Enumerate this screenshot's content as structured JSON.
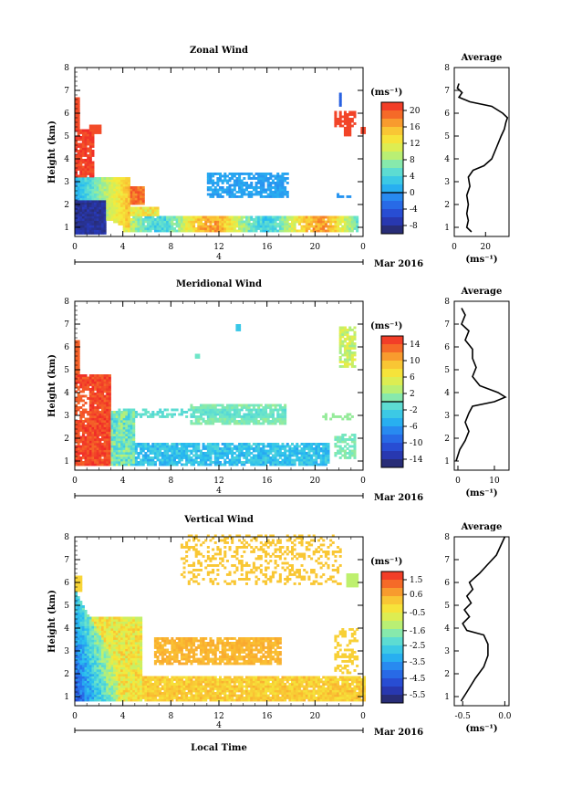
{
  "chart_data": [
    {
      "type": "heatmap",
      "title": "Zonal Wind",
      "ylabel": "Height (km)",
      "xlabel": "",
      "x_ticks": [
        "0",
        "4",
        "8",
        "12",
        "16",
        "20",
        "0"
      ],
      "y_ticks": [
        "1",
        "2",
        "3",
        "4",
        "5",
        "6",
        "7",
        "8"
      ],
      "xlim": [
        0,
        24
      ],
      "ylim": [
        0.6,
        8
      ],
      "date_day": "4",
      "date_label": "Mar 2016",
      "colorbar_unit": "(ms⁻¹)",
      "colorbar_ticks": [
        "20",
        "16",
        "12",
        "8",
        "4",
        "0",
        "-4",
        "-8"
      ],
      "colorbar_range": [
        -10,
        22
      ],
      "zero_line": 0,
      "profile": {
        "title": "Average",
        "xlabel": "(ms⁻¹)",
        "x_ticks": [
          "0",
          "20"
        ],
        "xlim": [
          0,
          35
        ],
        "points": [
          [
            11,
            0.8
          ],
          [
            8,
            1.0
          ],
          [
            9,
            1.3
          ],
          [
            8,
            1.6
          ],
          [
            9,
            2.0
          ],
          [
            8,
            2.4
          ],
          [
            10,
            2.8
          ],
          [
            9,
            3.2
          ],
          [
            12,
            3.5
          ],
          [
            19,
            3.7
          ],
          [
            24,
            4.0
          ],
          [
            27,
            4.5
          ],
          [
            30,
            5.0
          ],
          [
            32,
            5.3
          ],
          [
            33,
            5.6
          ],
          [
            34,
            5.8
          ],
          [
            31,
            6.0
          ],
          [
            24,
            6.3
          ],
          [
            10,
            6.5
          ],
          [
            3,
            6.7
          ],
          [
            5,
            6.9
          ],
          [
            2,
            7.1
          ],
          [
            3,
            7.3
          ]
        ]
      }
    },
    {
      "type": "heatmap",
      "title": "Meridional Wind",
      "ylabel": "Height (km)",
      "xlabel": "",
      "x_ticks": [
        "0",
        "4",
        "8",
        "12",
        "16",
        "20",
        "0"
      ],
      "y_ticks": [
        "1",
        "2",
        "3",
        "4",
        "5",
        "6",
        "7",
        "8"
      ],
      "xlim": [
        0,
        24
      ],
      "ylim": [
        0.6,
        8
      ],
      "date_day": "4",
      "date_label": "Mar 2016",
      "colorbar_unit": "(ms⁻¹)",
      "colorbar_ticks": [
        "14",
        "10",
        "6",
        "2",
        "-2",
        "-6",
        "-10",
        "-14"
      ],
      "colorbar_range": [
        -16,
        16
      ],
      "zero_line": 0,
      "profile": {
        "title": "Average",
        "xlabel": "(ms⁻¹)",
        "x_ticks": [
          "0",
          "10"
        ],
        "xlim": [
          -1,
          14
        ],
        "points": [
          [
            -0.5,
            1.0
          ],
          [
            0.5,
            1.5
          ],
          [
            2,
            1.9
          ],
          [
            3,
            2.3
          ],
          [
            2,
            2.7
          ],
          [
            3,
            3.1
          ],
          [
            4,
            3.4
          ],
          [
            10,
            3.6
          ],
          [
            13,
            3.8
          ],
          [
            11,
            4.0
          ],
          [
            6,
            4.3
          ],
          [
            4,
            4.7
          ],
          [
            5,
            5.1
          ],
          [
            4,
            5.5
          ],
          [
            4,
            5.9
          ],
          [
            2,
            6.3
          ],
          [
            3,
            6.7
          ],
          [
            1,
            7.0
          ],
          [
            2,
            7.4
          ],
          [
            1,
            7.7
          ]
        ]
      }
    },
    {
      "type": "heatmap",
      "title": "Vertical Wind",
      "ylabel": "Height (km)",
      "xlabel": "Local Time",
      "x_ticks": [
        "0",
        "4",
        "8",
        "12",
        "16",
        "20",
        "0"
      ],
      "y_ticks": [
        "1",
        "2",
        "3",
        "4",
        "5",
        "6",
        "7",
        "8"
      ],
      "xlim": [
        0,
        24
      ],
      "ylim": [
        0.6,
        8
      ],
      "date_day": "4",
      "date_label": "Mar 2016",
      "colorbar_unit": "(ms⁻¹)",
      "colorbar_ticks": [
        "1.5",
        "0.6",
        "-0.5",
        "-1.6",
        "-2.5",
        "-3.5",
        "-4.5",
        "-5.5"
      ],
      "colorbar_range": [
        -6,
        2
      ],
      "zero_line": null,
      "profile": {
        "title": "Average",
        "xlabel": "(ms⁻¹)",
        "x_ticks": [
          "-0.5",
          "0.0"
        ],
        "xlim": [
          -0.6,
          0.05
        ],
        "points": [
          [
            -0.52,
            0.8
          ],
          [
            -0.45,
            1.2
          ],
          [
            -0.35,
            1.8
          ],
          [
            -0.25,
            2.3
          ],
          [
            -0.2,
            2.8
          ],
          [
            -0.2,
            3.3
          ],
          [
            -0.25,
            3.7
          ],
          [
            -0.45,
            3.9
          ],
          [
            -0.5,
            4.2
          ],
          [
            -0.42,
            4.5
          ],
          [
            -0.48,
            4.8
          ],
          [
            -0.4,
            5.1
          ],
          [
            -0.45,
            5.4
          ],
          [
            -0.38,
            5.7
          ],
          [
            -0.42,
            6.0
          ],
          [
            -0.3,
            6.4
          ],
          [
            -0.2,
            6.8
          ],
          [
            -0.1,
            7.2
          ],
          [
            -0.05,
            7.6
          ],
          [
            0.0,
            8.0
          ]
        ]
      }
    }
  ]
}
